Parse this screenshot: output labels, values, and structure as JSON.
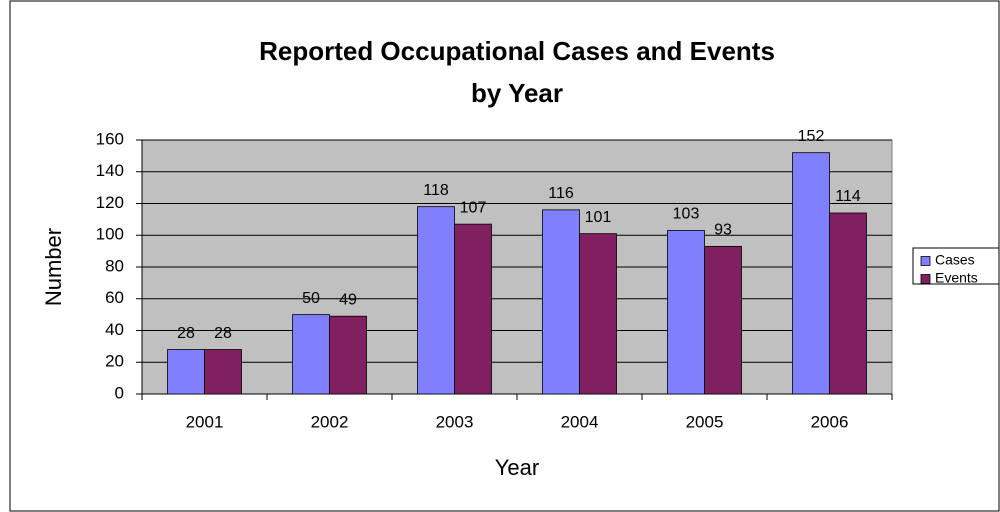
{
  "chart_data": {
    "type": "bar",
    "title": [
      "Reported Occupational Cases and Events",
      "by Year"
    ],
    "x_label": "Year",
    "y_label": "Number",
    "categories": [
      "2001",
      "2002",
      "2003",
      "2004",
      "2005",
      "2006"
    ],
    "series": [
      {
        "name": "Cases",
        "color": "#8080ff",
        "values": [
          28,
          50,
          118,
          116,
          103,
          152
        ]
      },
      {
        "name": "Events",
        "color": "#802060",
        "values": [
          28,
          49,
          107,
          101,
          93,
          114
        ]
      }
    ],
    "ylim": [
      0,
      160
    ],
    "yticks": [
      0,
      20,
      40,
      60,
      80,
      100,
      120,
      140,
      160
    ],
    "grid": true,
    "legend": "right",
    "plot_background": "#c0c0c0"
  }
}
